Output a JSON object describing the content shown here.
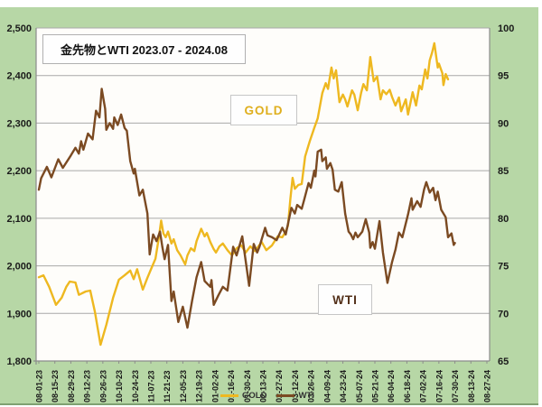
{
  "panel": {
    "bg": "#b7d7a6",
    "edge": "#7fa171"
  },
  "chart_data": {
    "type": "line",
    "title": "金先物とWTI 2023.07 - 2024.08",
    "grid": true,
    "legend_position": "bottom",
    "x_tick_interval_days": 14,
    "x_tick_labels": [
      "08-01-23",
      "08-15-23",
      "08-29-23",
      "09-12-23",
      "09-26-23",
      "10-10-23",
      "10-24-23",
      "11-07-23",
      "11-21-23",
      "12-05-23",
      "12-19-23",
      "01-02-24",
      "01-16-24",
      "01-30-24",
      "02-13-24",
      "02-27-24",
      "03-12-24",
      "03-26-24",
      "04-09-24",
      "04-23-24",
      "05-07-24",
      "05-21-24",
      "06-04-24",
      "06-18-24",
      "07-02-24",
      "07-16-24",
      "07-30-24",
      "08-13-24",
      "08-27-24"
    ],
    "left_axis": {
      "min": 1800,
      "max": 2500,
      "step": 100,
      "tick_labels": [
        "2,500",
        "2,400",
        "2,300",
        "2,200",
        "2,100",
        "2,000",
        "1,900",
        "1,800"
      ]
    },
    "right_axis": {
      "min": 65,
      "max": 100,
      "step": 5,
      "tick_labels": [
        "100",
        "95",
        "90",
        "85",
        "80",
        "75",
        "70",
        "65"
      ]
    },
    "series": [
      {
        "name": "GOLD",
        "axis": "left",
        "color": "#eeb820",
        "points": [
          [
            0,
            1976
          ],
          [
            4,
            1980
          ],
          [
            9,
            1956
          ],
          [
            15,
            1918
          ],
          [
            20,
            1933
          ],
          [
            24,
            1956
          ],
          [
            27,
            1967
          ],
          [
            32,
            1965
          ],
          [
            35,
            1939
          ],
          [
            41,
            1946
          ],
          [
            45,
            1948
          ],
          [
            49,
            1904
          ],
          [
            54,
            1834
          ],
          [
            59,
            1876
          ],
          [
            65,
            1933
          ],
          [
            70,
            1971
          ],
          [
            75,
            1980
          ],
          [
            80,
            1990
          ],
          [
            83,
            1972
          ],
          [
            86,
            1993
          ],
          [
            91,
            1950
          ],
          [
            95,
            1975
          ],
          [
            99,
            1998
          ],
          [
            102,
            2015
          ],
          [
            105,
            2060
          ],
          [
            107,
            2095
          ],
          [
            109,
            2068
          ],
          [
            111,
            2060
          ],
          [
            113,
            2072
          ],
          [
            116,
            2047
          ],
          [
            118,
            2056
          ],
          [
            121,
            2033
          ],
          [
            124,
            2022
          ],
          [
            128,
            2003
          ],
          [
            130,
            2022
          ],
          [
            133,
            2037
          ],
          [
            136,
            2031
          ],
          [
            138,
            2052
          ],
          [
            142,
            2078
          ],
          [
            145,
            2062
          ],
          [
            147,
            2069
          ],
          [
            150,
            2050
          ],
          [
            153,
            2035
          ],
          [
            155,
            2028
          ],
          [
            158,
            2041
          ],
          [
            161,
            2047
          ],
          [
            165,
            2033
          ],
          [
            169,
            2022
          ],
          [
            173,
            2037
          ],
          [
            177,
            2043
          ],
          [
            181,
            2028
          ],
          [
            185,
            2041
          ],
          [
            189,
            2031
          ],
          [
            195,
            2050
          ],
          [
            199,
            2033
          ],
          [
            204,
            2043
          ],
          [
            209,
            2062
          ],
          [
            213,
            2060
          ],
          [
            216,
            2072
          ],
          [
            218,
            2085
          ],
          [
            220,
            2140
          ],
          [
            222,
            2185
          ],
          [
            224,
            2162
          ],
          [
            227,
            2170
          ],
          [
            230,
            2172
          ],
          [
            233,
            2230
          ],
          [
            237,
            2262
          ],
          [
            241,
            2290
          ],
          [
            244,
            2310
          ],
          [
            248,
            2363
          ],
          [
            251,
            2384
          ],
          [
            253,
            2372
          ],
          [
            256,
            2417
          ],
          [
            258,
            2394
          ],
          [
            260,
            2411
          ],
          [
            263,
            2344
          ],
          [
            266,
            2360
          ],
          [
            268,
            2350
          ],
          [
            270,
            2335
          ],
          [
            274,
            2369
          ],
          [
            276,
            2360
          ],
          [
            279,
            2327
          ],
          [
            282,
            2364
          ],
          [
            284,
            2382
          ],
          [
            287,
            2369
          ],
          [
            290,
            2439
          ],
          [
            293,
            2388
          ],
          [
            296,
            2398
          ],
          [
            299,
            2350
          ],
          [
            301,
            2369
          ],
          [
            304,
            2361
          ],
          [
            307,
            2370
          ],
          [
            309,
            2355
          ],
          [
            312,
            2337
          ],
          [
            315,
            2354
          ],
          [
            317,
            2325
          ],
          [
            321,
            2350
          ],
          [
            323,
            2318
          ],
          [
            327,
            2365
          ],
          [
            330,
            2337
          ],
          [
            333,
            2379
          ],
          [
            335,
            2371
          ],
          [
            338,
            2413
          ],
          [
            340,
            2394
          ],
          [
            342,
            2432
          ],
          [
            344,
            2448
          ],
          [
            346,
            2468
          ],
          [
            349,
            2417
          ],
          [
            350,
            2425
          ],
          [
            353,
            2405
          ],
          [
            354,
            2380
          ],
          [
            356,
            2403
          ],
          [
            358,
            2392
          ]
        ]
      },
      {
        "name": "WTI",
        "axis": "right",
        "color": "#7b4a22",
        "points": [
          [
            0,
            83.0
          ],
          [
            2,
            84.2
          ],
          [
            7,
            85.4
          ],
          [
            11,
            84.3
          ],
          [
            17,
            86.2
          ],
          [
            21,
            85.3
          ],
          [
            28,
            86.6
          ],
          [
            32,
            87.4
          ],
          [
            35,
            86.8
          ],
          [
            37,
            88.1
          ],
          [
            39,
            87.2
          ],
          [
            43,
            88.9
          ],
          [
            47,
            88.3
          ],
          [
            50,
            91.3
          ],
          [
            53,
            90.6
          ],
          [
            55,
            93.6
          ],
          [
            58,
            91.5
          ],
          [
            59,
            89.3
          ],
          [
            62,
            90.0
          ],
          [
            65,
            89.4
          ],
          [
            66,
            90.6
          ],
          [
            69,
            89.8
          ],
          [
            72,
            90.9
          ],
          [
            75,
            89.5
          ],
          [
            77,
            89.2
          ],
          [
            80,
            86.0
          ],
          [
            83,
            84.7
          ],
          [
            84,
            85.2
          ],
          [
            88,
            82.4
          ],
          [
            91,
            83.0
          ],
          [
            95,
            80.5
          ],
          [
            97,
            76.2
          ],
          [
            100,
            78.3
          ],
          [
            103,
            77.6
          ],
          [
            106,
            78.6
          ],
          [
            108,
            77.0
          ],
          [
            110,
            75.7
          ],
          [
            113,
            77.2
          ],
          [
            116,
            71.3
          ],
          [
            118,
            72.3
          ],
          [
            122,
            69.1
          ],
          [
            126,
            70.7
          ],
          [
            130,
            68.5
          ],
          [
            134,
            71.3
          ],
          [
            138,
            73.8
          ],
          [
            142,
            75.4
          ],
          [
            145,
            73.4
          ],
          [
            150,
            72.8
          ],
          [
            151,
            73.5
          ],
          [
            153,
            70.9
          ],
          [
            157,
            71.9
          ],
          [
            161,
            72.8
          ],
          [
            165,
            72.4
          ],
          [
            170,
            77.0
          ],
          [
            173,
            76.1
          ],
          [
            178,
            78.1
          ],
          [
            184,
            72.9
          ],
          [
            188,
            77.3
          ],
          [
            191,
            76.4
          ],
          [
            193,
            77.0
          ],
          [
            198,
            79.0
          ],
          [
            200,
            78.2
          ],
          [
            204,
            78.0
          ],
          [
            208,
            77.7
          ],
          [
            213,
            79.0
          ],
          [
            216,
            78.3
          ],
          [
            221,
            81.1
          ],
          [
            224,
            80.5
          ],
          [
            226,
            81.4
          ],
          [
            230,
            81.0
          ],
          [
            232,
            81.9
          ],
          [
            236,
            83.7
          ],
          [
            238,
            83.2
          ],
          [
            241,
            85.0
          ],
          [
            242,
            84.4
          ],
          [
            244,
            87.0
          ],
          [
            247,
            87.2
          ],
          [
            248,
            86.0
          ],
          [
            251,
            86.4
          ],
          [
            252,
            85.2
          ],
          [
            255,
            85.8
          ],
          [
            257,
            85.1
          ],
          [
            259,
            83.0
          ],
          [
            262,
            82.8
          ],
          [
            265,
            83.8
          ],
          [
            268,
            80.5
          ],
          [
            271,
            78.6
          ],
          [
            273,
            78.3
          ],
          [
            275,
            77.8
          ],
          [
            277,
            78.5
          ],
          [
            279,
            78.0
          ],
          [
            281,
            78.3
          ],
          [
            283,
            78.6
          ],
          [
            286,
            79.9
          ],
          [
            289,
            78.5
          ],
          [
            290,
            76.9
          ],
          [
            292,
            77.5
          ],
          [
            294,
            76.8
          ],
          [
            298,
            79.7
          ],
          [
            301,
            76.4
          ],
          [
            305,
            73.2
          ],
          [
            309,
            75.4
          ],
          [
            312,
            76.7
          ],
          [
            315,
            78.5
          ],
          [
            318,
            78.0
          ],
          [
            323,
            80.4
          ],
          [
            326,
            82.1
          ],
          [
            327,
            80.9
          ],
          [
            331,
            81.8
          ],
          [
            334,
            81.2
          ],
          [
            337,
            83.0
          ],
          [
            339,
            83.8
          ],
          [
            342,
            82.7
          ],
          [
            345,
            83.2
          ],
          [
            347,
            81.9
          ],
          [
            349,
            82.8
          ],
          [
            352,
            80.9
          ],
          [
            355,
            80.3
          ],
          [
            356,
            80.1
          ],
          [
            358,
            78.0
          ],
          [
            361,
            78.4
          ],
          [
            363,
            77.2
          ],
          [
            364,
            77.4
          ]
        ]
      }
    ],
    "annotations": [
      {
        "text": "GOLD",
        "color": "#dfaf1e"
      },
      {
        "text": "WTI",
        "color": "#53301a"
      }
    ]
  },
  "legend": {
    "items": [
      {
        "label": "GOLD",
        "color": "#eeb820"
      },
      {
        "label": "WTI",
        "color": "#7b4a22"
      }
    ]
  }
}
